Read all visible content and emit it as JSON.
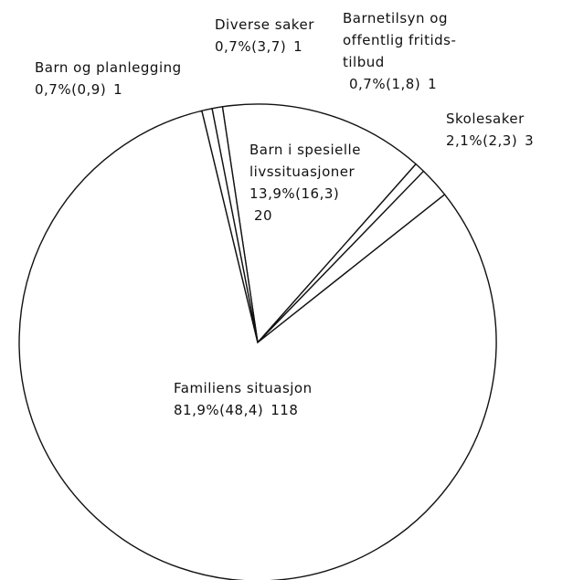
{
  "chart_data": {
    "type": "pie",
    "categories": [
      "Barn i spesielle livssituasjoner",
      "Barnetilsyn og offentlig fritids-tilbud",
      "Skolesaker",
      "Familiens situasjon",
      "Barn og planlegging",
      "Diverse saker"
    ],
    "values": [
      13.9,
      0.7,
      2.1,
      81.9,
      0.7,
      0.7
    ],
    "value_labels": [
      "13,9%(16,3)",
      "0,7%(1,8)",
      "2,1%(2,3)",
      "81,9%(48,4)",
      "0,7%(0,9)",
      "0,7%(3,7)"
    ],
    "counts": [
      20,
      1,
      3,
      118,
      1,
      1
    ],
    "color": "#ffffff"
  }
}
